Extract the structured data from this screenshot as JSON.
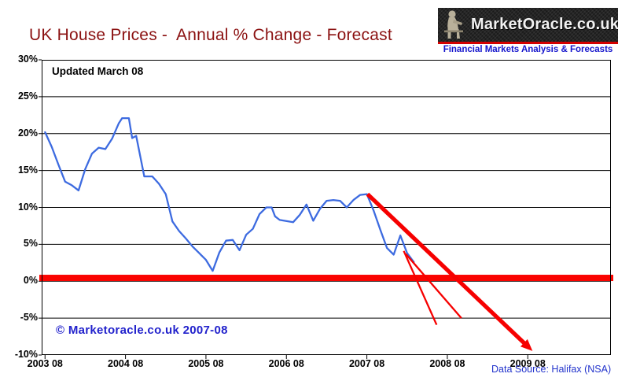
{
  "header": {
    "title": "UK House Prices -  Annual % Change - Forecast",
    "title_color": "#8B1111",
    "logo": {
      "title": "MarketOracle.co.uk",
      "subtitle": "Financial Markets Analysis & Forecasts",
      "statue_icon": "seated-statue-icon",
      "panel_color": "#262626",
      "accent_bar_color": "#D40000",
      "subtitle_color": "#1414CC",
      "title_color": "#F2F2F2"
    }
  },
  "chart_data": {
    "type": "line",
    "title": "UK House Prices -  Annual % Change - Forecast",
    "updated_note": "Updated March 08",
    "copyright_note": "© Marketoracle.co.uk 2007-08",
    "source_note": "Data Source: Halifax (NSA)",
    "xlabel": "",
    "ylabel": "",
    "grid": true,
    "legend_position": "none",
    "x_unit": "months since 2003-08",
    "x_domain": [
      -0.5,
      84.4
    ],
    "y_domain": [
      -10,
      30
    ],
    "y_ticks": [
      {
        "value": 30,
        "label": "30%"
      },
      {
        "value": 25,
        "label": "25%"
      },
      {
        "value": 20,
        "label": "20%"
      },
      {
        "value": 15,
        "label": "15%"
      },
      {
        "value": 10,
        "label": "10%"
      },
      {
        "value": 5,
        "label": "5%"
      },
      {
        "value": 0,
        "label": "0%"
      },
      {
        "value": -5,
        "label": "-5%"
      },
      {
        "value": -10,
        "label": "-10%"
      }
    ],
    "x_ticks": [
      {
        "month": 0,
        "label": "2003 08"
      },
      {
        "month": 12,
        "label": "2004 08"
      },
      {
        "month": 24,
        "label": "2005 08"
      },
      {
        "month": 36,
        "label": "2006 08"
      },
      {
        "month": 48,
        "label": "2007 08"
      },
      {
        "month": 60,
        "label": "2008 08"
      },
      {
        "month": 72,
        "label": "2009 08"
      }
    ],
    "series": [
      {
        "name": "UK house prices annual % change (Halifax NSA)",
        "color": "#3D6BE0",
        "points": [
          [
            0,
            20.2
          ],
          [
            1,
            18.2
          ],
          [
            2,
            15.8
          ],
          [
            3,
            13.5
          ],
          [
            4,
            13.0
          ],
          [
            5,
            12.3
          ],
          [
            6,
            15.2
          ],
          [
            7,
            17.3
          ],
          [
            8,
            18.1
          ],
          [
            9,
            17.9
          ],
          [
            10,
            19.3
          ],
          [
            11,
            21.4
          ],
          [
            11.5,
            22.1
          ],
          [
            12.5,
            22.1
          ],
          [
            13,
            19.4
          ],
          [
            13.6,
            19.7
          ],
          [
            14.8,
            14.2
          ],
          [
            16,
            14.2
          ],
          [
            17,
            13.2
          ],
          [
            18,
            11.8
          ],
          [
            19,
            8.1
          ],
          [
            20,
            6.8
          ],
          [
            21,
            5.8
          ],
          [
            22,
            4.7
          ],
          [
            23,
            3.8
          ],
          [
            24,
            2.9
          ],
          [
            25,
            1.4
          ],
          [
            26,
            3.9
          ],
          [
            27,
            5.5
          ],
          [
            28,
            5.6
          ],
          [
            29,
            4.2
          ],
          [
            30,
            6.3
          ],
          [
            31,
            7.1
          ],
          [
            32,
            9.1
          ],
          [
            33,
            10.0
          ],
          [
            33.8,
            10.0
          ],
          [
            34.3,
            8.8
          ],
          [
            35,
            8.3
          ],
          [
            37,
            8.0
          ],
          [
            38,
            9.0
          ],
          [
            39,
            10.4
          ],
          [
            40,
            8.2
          ],
          [
            41,
            9.8
          ],
          [
            42,
            10.9
          ],
          [
            43,
            11.0
          ],
          [
            44,
            10.9
          ],
          [
            45,
            10.0
          ],
          [
            46,
            11.0
          ],
          [
            47,
            11.7
          ],
          [
            48,
            11.8
          ],
          [
            49,
            9.6
          ],
          [
            50,
            7.0
          ],
          [
            51,
            4.5
          ],
          [
            52,
            3.6
          ],
          [
            53,
            6.2
          ],
          [
            54,
            3.8
          ],
          [
            55,
            2.6
          ]
        ]
      }
    ],
    "zero_band": {
      "value": 0.45,
      "thickness_px": 8,
      "color": "#FA0400"
    },
    "forecast_arrows": [
      {
        "name": "main-forecast-arrow",
        "from": [
          48.1,
          11.8
        ],
        "to": [
          71.6,
          -8.5
        ],
        "width": 5.2,
        "head": true,
        "color": "#F60000"
      },
      {
        "name": "forecast-line-1",
        "from": [
          53.5,
          4.1
        ],
        "to": [
          58.4,
          -5.9
        ],
        "width": 2.3,
        "head": false,
        "color": "#F60000"
      },
      {
        "name": "forecast-line-2",
        "from": [
          53.8,
          3.7
        ],
        "to": [
          62.1,
          -5.0
        ],
        "width": 2.3,
        "head": false,
        "color": "#F60000"
      }
    ],
    "colors": {
      "axis": "#000000",
      "background": "#FFFFFF",
      "copyright_text": "#2222CC",
      "source_text": "#2233CC"
    }
  }
}
